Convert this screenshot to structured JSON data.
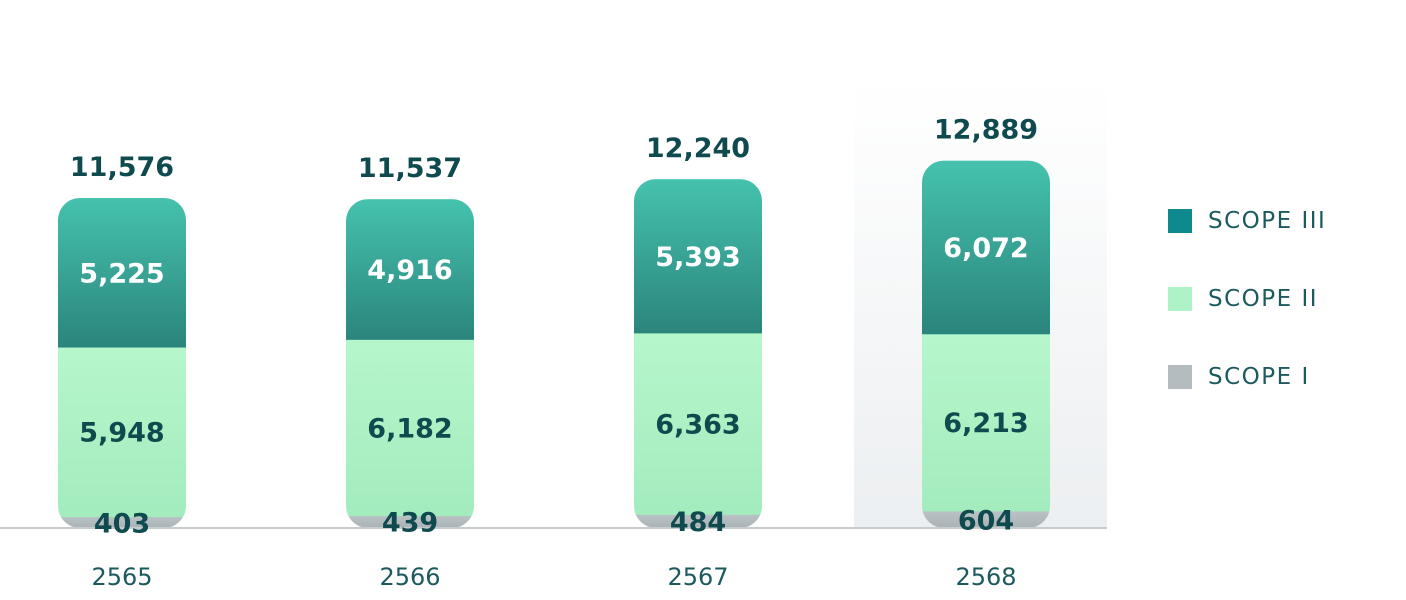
{
  "chart_data": {
    "type": "bar",
    "stacked": true,
    "categories": [
      "2565",
      "2566",
      "2567",
      "2568"
    ],
    "series": [
      {
        "name": "SCOPE I",
        "values": [
          403,
          439,
          484,
          604
        ],
        "color": "#b4bcbf"
      },
      {
        "name": "SCOPE II",
        "values": [
          5948,
          6182,
          6363,
          6213
        ],
        "color": "#aef3c8"
      },
      {
        "name": "SCOPE III",
        "values": [
          5225,
          4916,
          5393,
          6072
        ],
        "color": "#2f9a87"
      }
    ],
    "totals": [
      "11,576",
      "11,537",
      "12,240",
      "12,889"
    ],
    "segment_labels": [
      [
        "403",
        "5,948",
        "5,225"
      ],
      [
        "439",
        "6,182",
        "4,916"
      ],
      [
        "484",
        "6,363",
        "5,393"
      ],
      [
        "604",
        "6,213",
        "6,072"
      ]
    ],
    "highlighted_category": "2568",
    "legend": {
      "position": "right",
      "items": [
        {
          "label": "SCOPE III",
          "color": "#0e8a8f"
        },
        {
          "label": "SCOPE II",
          "color": "#aef3c8"
        },
        {
          "label": "SCOPE I",
          "color": "#b4bcbf"
        }
      ]
    },
    "title": "",
    "xlabel": "",
    "ylabel": "",
    "grid": false
  }
}
